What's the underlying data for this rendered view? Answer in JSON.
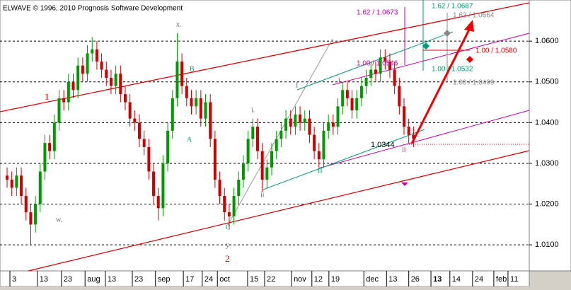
{
  "chart_data": {
    "type": "candlestick",
    "title": "ELWAVE © 1996, 2010 Prognosis Software Development",
    "x": [
      0,
      1,
      2,
      3,
      4,
      5,
      6,
      7,
      8,
      9,
      10,
      11,
      12,
      13,
      14,
      15,
      16,
      17,
      18,
      19,
      20,
      21,
      22,
      23,
      24,
      25,
      26,
      27,
      28,
      29,
      30,
      31,
      32,
      33,
      34,
      35,
      36,
      37,
      38,
      39,
      40,
      41,
      42,
      43,
      44,
      45,
      46,
      47,
      48,
      49,
      50,
      51,
      52,
      53,
      54,
      55,
      56,
      57,
      58,
      59,
      60,
      61,
      62,
      63,
      64,
      65,
      66,
      67,
      68,
      69,
      70,
      71,
      72,
      73,
      74,
      75,
      76,
      77,
      78,
      79,
      80,
      81,
      82,
      83,
      84,
      85,
      86
    ],
    "open": [
      1.027,
      1.026,
      1.024,
      1.027,
      1.022,
      1.018,
      1.015,
      1.02,
      1.028,
      1.035,
      1.033,
      1.04,
      1.046,
      1.045,
      1.05,
      1.048,
      1.054,
      1.052,
      1.057,
      1.058,
      1.055,
      1.053,
      1.051,
      1.049,
      1.052,
      1.047,
      1.045,
      1.041,
      1.04,
      1.036,
      1.034,
      1.028,
      1.022,
      1.019,
      1.03,
      1.038,
      1.046,
      1.055,
      1.049,
      1.046,
      1.044,
      1.046,
      1.041,
      1.045,
      1.036,
      1.026,
      1.022,
      1.018,
      1.017,
      1.022,
      1.026,
      1.03,
      1.036,
      1.039,
      1.033,
      1.026,
      1.029,
      1.033,
      1.036,
      1.038,
      1.041,
      1.039,
      1.042,
      1.04,
      1.041,
      1.037,
      1.033,
      1.031,
      1.038,
      1.04,
      1.039,
      1.044,
      1.048,
      1.046,
      1.043,
      1.046,
      1.049,
      1.051,
      1.053,
      1.052,
      1.056,
      1.055,
      1.053,
      1.049,
      1.044,
      1.039,
      1.037
    ],
    "high": [
      1.029,
      1.028,
      1.029,
      1.029,
      1.024,
      1.02,
      1.022,
      1.03,
      1.037,
      1.037,
      1.042,
      1.048,
      1.048,
      1.052,
      1.052,
      1.056,
      1.056,
      1.059,
      1.061,
      1.06,
      1.057,
      1.055,
      1.053,
      1.054,
      1.054,
      1.049,
      1.047,
      1.043,
      1.042,
      1.038,
      1.036,
      1.03,
      1.024,
      1.032,
      1.04,
      1.048,
      1.062,
      1.057,
      1.051,
      1.048,
      1.048,
      1.048,
      1.047,
      1.047,
      1.038,
      1.028,
      1.024,
      1.02,
      1.024,
      1.028,
      1.032,
      1.038,
      1.041,
      1.041,
      1.035,
      1.031,
      1.035,
      1.038,
      1.04,
      1.043,
      1.043,
      1.044,
      1.044,
      1.043,
      1.043,
      1.039,
      1.035,
      1.04,
      1.042,
      1.042,
      1.046,
      1.05,
      1.05,
      1.048,
      1.048,
      1.051,
      1.053,
      1.055,
      1.055,
      1.058,
      1.058,
      1.057,
      1.055,
      1.051,
      1.046,
      1.041,
      1.039
    ],
    "low": [
      1.024,
      1.022,
      1.022,
      1.02,
      1.016,
      1.01,
      1.013,
      1.018,
      1.026,
      1.031,
      1.031,
      1.038,
      1.043,
      1.043,
      1.046,
      1.046,
      1.05,
      1.05,
      1.055,
      1.053,
      1.051,
      1.049,
      1.047,
      1.047,
      1.045,
      1.043,
      1.039,
      1.038,
      1.034,
      1.032,
      1.026,
      1.02,
      1.016,
      1.017,
      1.028,
      1.036,
      1.044,
      1.047,
      1.044,
      1.042,
      1.042,
      1.039,
      1.039,
      1.034,
      1.024,
      1.02,
      1.016,
      1.014,
      1.015,
      1.02,
      1.024,
      1.028,
      1.034,
      1.031,
      1.023,
      1.024,
      1.027,
      1.031,
      1.034,
      1.036,
      1.037,
      1.037,
      1.038,
      1.038,
      1.035,
      1.031,
      1.029,
      1.029,
      1.036,
      1.037,
      1.037,
      1.042,
      1.044,
      1.041,
      1.041,
      1.044,
      1.047,
      1.049,
      1.05,
      1.05,
      1.053,
      1.051,
      1.047,
      1.042,
      1.037,
      1.035,
      1.034
    ],
    "close": [
      1.026,
      1.024,
      1.027,
      1.022,
      1.018,
      1.015,
      1.02,
      1.028,
      1.035,
      1.033,
      1.04,
      1.046,
      1.045,
      1.05,
      1.048,
      1.054,
      1.052,
      1.057,
      1.058,
      1.055,
      1.053,
      1.051,
      1.049,
      1.052,
      1.047,
      1.045,
      1.041,
      1.04,
      1.036,
      1.034,
      1.028,
      1.022,
      1.019,
      1.03,
      1.038,
      1.046,
      1.055,
      1.049,
      1.046,
      1.044,
      1.046,
      1.041,
      1.045,
      1.036,
      1.026,
      1.022,
      1.018,
      1.017,
      1.022,
      1.026,
      1.03,
      1.036,
      1.039,
      1.033,
      1.026,
      1.029,
      1.033,
      1.036,
      1.038,
      1.041,
      1.039,
      1.042,
      1.04,
      1.041,
      1.037,
      1.033,
      1.031,
      1.038,
      1.04,
      1.039,
      1.044,
      1.048,
      1.046,
      1.043,
      1.046,
      1.049,
      1.051,
      1.053,
      1.052,
      1.056,
      1.055,
      1.053,
      1.049,
      1.044,
      1.039,
      1.037,
      1.036
    ],
    "up_color": "#009900",
    "down_color": "#cc0000",
    "xlim": [
      -1.5,
      110.5
    ],
    "xticks": [
      {
        "value": 0.6,
        "label": "3"
      },
      {
        "value": 6.4,
        "label": "13"
      },
      {
        "value": 11.5,
        "label": "23"
      },
      {
        "value": 16.5,
        "label": "aug"
      },
      {
        "value": 20.8,
        "label": "13"
      },
      {
        "value": 26.5,
        "label": "23"
      },
      {
        "value": 31.4,
        "label": "sep"
      },
      {
        "value": 37.3,
        "label": "17"
      },
      {
        "value": 41.3,
        "label": "24"
      },
      {
        "value": 44.5,
        "label": "oct"
      },
      {
        "value": 50.9,
        "label": "15"
      },
      {
        "value": 54.5,
        "label": "22"
      },
      {
        "value": 60.2,
        "label": "nov"
      },
      {
        "value": 64.5,
        "label": "12"
      },
      {
        "value": 68.1,
        "label": "19"
      },
      {
        "value": 75.5,
        "label": "dec"
      },
      {
        "value": 80.3,
        "label": "13"
      },
      {
        "value": 85.0,
        "label": "26"
      },
      {
        "value": 89.7,
        "label": "13"
      },
      {
        "value": 93.7,
        "label": "14"
      },
      {
        "value": 98.5,
        "label": "24"
      },
      {
        "value": 103.0,
        "label": "feb"
      },
      {
        "value": 106.0,
        "label": "11"
      }
    ],
    "ylim": [
      1.0036,
      1.0701
    ],
    "yticks": [
      {
        "value": 1.01,
        "label": "1.0100"
      },
      {
        "value": 1.02,
        "label": "1.0200"
      },
      {
        "value": 1.03,
        "label": "1.0300"
      },
      {
        "value": 1.04,
        "label": "1.0400"
      },
      {
        "value": 1.05,
        "label": "1.0500"
      },
      {
        "value": 1.06,
        "label": "1.0600"
      }
    ],
    "grid": true,
    "annotations": [
      "1",
      "2",
      "x.",
      "w.",
      "y",
      "B",
      "A",
      "C",
      "i.",
      "ii",
      "I",
      "II",
      "i.",
      "ii",
      "1.0344",
      "1.62 / 1.0673",
      "1.62 / 1.0687",
      "1.62 / 1.0664",
      "1.00 / 1.0580",
      "1.00 / 1.0546",
      "1.00 / 1.0532",
      "1.00 / 1.0499"
    ]
  }
}
